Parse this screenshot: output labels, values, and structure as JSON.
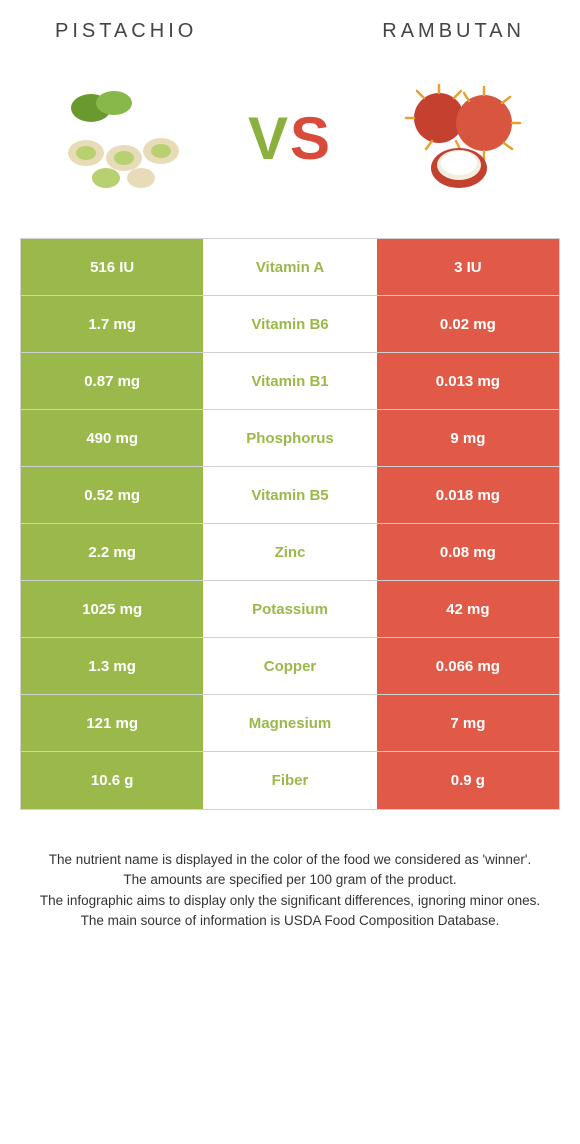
{
  "colors": {
    "left_bg": "#9ab94a",
    "right_bg": "#e15a48",
    "mid_bg": "#ffffff",
    "row_border": "#d0d0d0",
    "title_color": "#444444",
    "footer_color": "#333333",
    "vs_v": "#8bb03e",
    "vs_s": "#d84a3a"
  },
  "header": {
    "left": "Pistachio",
    "right": "Rambutan",
    "vs_v": "V",
    "vs_s": "S"
  },
  "rows": [
    {
      "left": "516 IU",
      "label": "Vitamin A",
      "right": "3 IU",
      "winner": "left"
    },
    {
      "left": "1.7 mg",
      "label": "Vitamin B6",
      "right": "0.02 mg",
      "winner": "left"
    },
    {
      "left": "0.87 mg",
      "label": "Vitamin B1",
      "right": "0.013 mg",
      "winner": "left"
    },
    {
      "left": "490 mg",
      "label": "Phosphorus",
      "right": "9 mg",
      "winner": "left"
    },
    {
      "left": "0.52 mg",
      "label": "Vitamin B5",
      "right": "0.018 mg",
      "winner": "left"
    },
    {
      "left": "2.2 mg",
      "label": "Zinc",
      "right": "0.08 mg",
      "winner": "left"
    },
    {
      "left": "1025 mg",
      "label": "Potassium",
      "right": "42 mg",
      "winner": "left"
    },
    {
      "left": "1.3 mg",
      "label": "Copper",
      "right": "0.066 mg",
      "winner": "left"
    },
    {
      "left": "121 mg",
      "label": "Magnesium",
      "right": "7 mg",
      "winner": "left"
    },
    {
      "left": "10.6 g",
      "label": "Fiber",
      "right": "0.9 g",
      "winner": "left"
    }
  ],
  "footer": {
    "l1": "The nutrient name is displayed in the color of the food we considered as 'winner'.",
    "l2": "The amounts are specified per 100 gram of the product.",
    "l3": "The infographic aims to display only the significant differences, ignoring minor ones.",
    "l4": "The main source of information is USDA Food Composition Database."
  }
}
